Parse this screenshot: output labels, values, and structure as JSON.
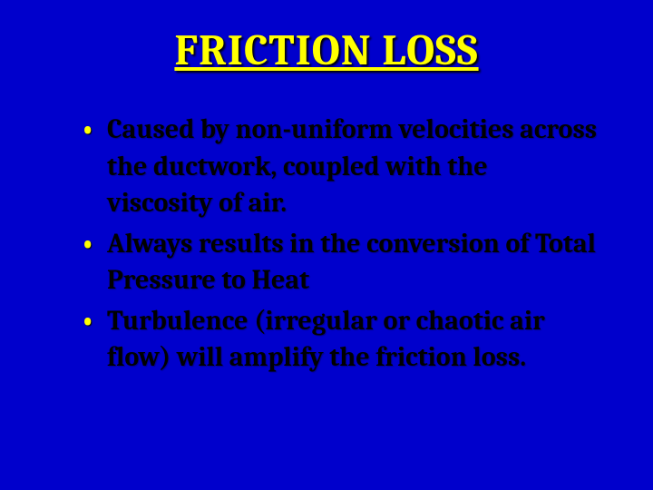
{
  "slide": {
    "title": "FRICTION LOSS",
    "bullets": [
      "Caused by non-uniform velocities across the ductwork, coupled with the viscosity of air.",
      "Always results in the conversion of Total Pressure to Heat",
      "Turbulence (irregular or chaotic air flow) will amplify the friction loss."
    ],
    "background_color": "#0000cc",
    "title_color": "#ffff00",
    "bullet_text_color": "#000000",
    "bullet_marker_color": "#ffff00",
    "title_fontsize": 48,
    "bullet_fontsize": 30
  }
}
